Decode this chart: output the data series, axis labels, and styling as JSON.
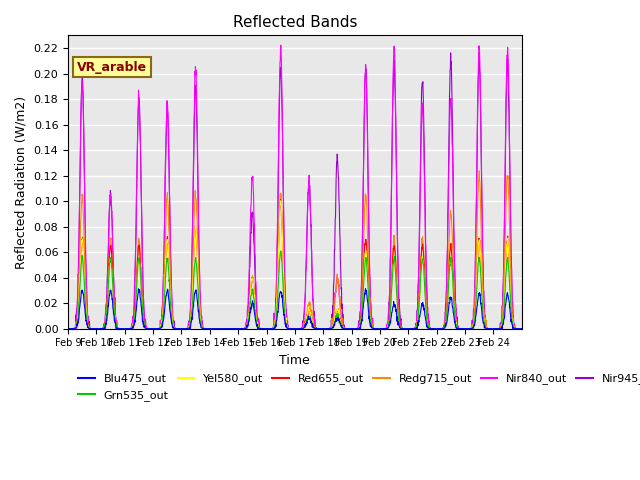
{
  "title": "Reflected Bands",
  "xlabel": "Time",
  "ylabel": "Reflected Radiation (W/m2)",
  "ylim": [
    0,
    0.23
  ],
  "yticks": [
    0.0,
    0.02,
    0.04,
    0.06,
    0.08,
    0.1,
    0.12,
    0.14,
    0.16,
    0.18,
    0.2,
    0.22
  ],
  "annotation_text": "VR_arable",
  "annotation_bg": "#FFFF99",
  "annotation_edge": "#8B6914",
  "annotation_text_color": "#8B0000",
  "series_colors": {
    "Blu475_out": "#0000FF",
    "Grn535_out": "#00CC00",
    "Yel580_out": "#FFFF00",
    "Red655_out": "#FF0000",
    "Redg715_out": "#FF8800",
    "Nir840_out": "#FF00FF",
    "Nir945_out": "#9900CC"
  },
  "background_color": "#E8E8E8",
  "grid_color": "#FFFFFF",
  "n_days": 16,
  "day_labels": [
    "Feb 9",
    "Feb 10",
    "Feb 11",
    "Feb 12",
    "Feb 13",
    "Feb 14",
    "Feb 15",
    "Feb 16",
    "Feb 17",
    "Feb 18",
    "Feb 19",
    "Feb 20",
    "Feb 21",
    "Feb 22",
    "Feb 23",
    "Feb 24"
  ],
  "peaks_nir945": [
    0.195,
    0.105,
    0.18,
    0.175,
    0.19,
    0.0,
    0.09,
    0.205,
    0.115,
    0.135,
    0.205,
    0.21,
    0.195,
    0.21,
    0.21,
    0.21
  ],
  "peaks_nir840": [
    0.195,
    0.105,
    0.18,
    0.175,
    0.205,
    0.0,
    0.12,
    0.22,
    0.115,
    0.04,
    0.205,
    0.22,
    0.175,
    0.18,
    0.22,
    0.22
  ],
  "peaks_redg715": [
    0.105,
    0.07,
    0.07,
    0.105,
    0.105,
    0.0,
    0.04,
    0.105,
    0.02,
    0.04,
    0.105,
    0.07,
    0.07,
    0.09,
    0.12,
    0.12
  ],
  "peaks_red655": [
    0.07,
    0.065,
    0.065,
    0.07,
    0.08,
    0.0,
    0.04,
    0.1,
    0.015,
    0.015,
    0.07,
    0.065,
    0.065,
    0.065,
    0.07,
    0.07
  ],
  "peaks_yel580": [
    0.07,
    0.055,
    0.055,
    0.07,
    0.08,
    0.0,
    0.04,
    0.1,
    0.015,
    0.015,
    0.06,
    0.055,
    0.055,
    0.055,
    0.07,
    0.07
  ],
  "peaks_grn535": [
    0.055,
    0.055,
    0.055,
    0.055,
    0.055,
    0.0,
    0.03,
    0.06,
    0.01,
    0.01,
    0.055,
    0.055,
    0.055,
    0.055,
    0.055,
    0.055
  ],
  "peaks_blu475": [
    0.03,
    0.03,
    0.03,
    0.03,
    0.03,
    0.0,
    0.02,
    0.03,
    0.008,
    0.008,
    0.03,
    0.02,
    0.02,
    0.025,
    0.027,
    0.027
  ]
}
